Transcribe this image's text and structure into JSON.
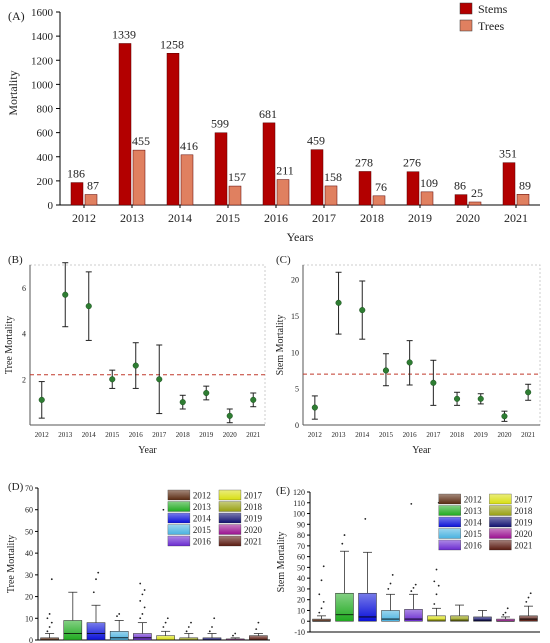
{
  "chart_data": [
    {
      "panel": "(A)",
      "type": "bar",
      "xlabel": "Years",
      "ylabel": "Mortality",
      "ylim": [
        0,
        1600
      ],
      "yticks": [
        0,
        200,
        400,
        600,
        800,
        1000,
        1200,
        1400,
        1600
      ],
      "categories": [
        "2012",
        "2013",
        "2014",
        "2015",
        "2016",
        "2017",
        "2018",
        "2019",
        "2020",
        "2021"
      ],
      "legend_position": "top-right",
      "series": [
        {
          "name": "Stems",
          "color": "#b30000",
          "values": [
            186,
            1339,
            1258,
            599,
            681,
            459,
            278,
            276,
            86,
            351
          ]
        },
        {
          "name": "Trees",
          "color": "#e08060",
          "values": [
            87,
            455,
            416,
            157,
            211,
            158,
            76,
            109,
            25,
            89
          ]
        }
      ]
    },
    {
      "panel": "(B)",
      "type": "scatter",
      "xlabel": "Year",
      "ylabel": "Tree Mortality",
      "ylim": [
        0,
        7
      ],
      "yticks": [
        2,
        4,
        6
      ],
      "categories": [
        "2012",
        "2013",
        "2014",
        "2015",
        "2016",
        "2017",
        "2018",
        "2019",
        "2020",
        "2021"
      ],
      "mean": [
        1.1,
        5.7,
        5.2,
        2.0,
        2.6,
        2.0,
        1.0,
        1.4,
        0.4,
        1.1
      ],
      "lower": [
        0.3,
        4.3,
        3.7,
        1.6,
        1.6,
        0.5,
        0.7,
        1.1,
        0.1,
        0.8
      ],
      "upper": [
        1.9,
        7.1,
        6.7,
        2.4,
        3.6,
        3.5,
        1.3,
        1.7,
        0.7,
        1.4
      ],
      "reference_line": 2.2
    },
    {
      "panel": "(C)",
      "type": "scatter",
      "xlabel": "Year",
      "ylabel": "Stem Mortality",
      "ylim": [
        0,
        22
      ],
      "yticks": [
        0,
        5,
        10,
        15,
        20
      ],
      "categories": [
        "2012",
        "2013",
        "2014",
        "2015",
        "2016",
        "2017",
        "2018",
        "2019",
        "2020",
        "2021"
      ],
      "mean": [
        2.4,
        16.8,
        15.8,
        7.5,
        8.6,
        5.8,
        3.6,
        3.6,
        1.2,
        4.5
      ],
      "lower": [
        0.8,
        12.5,
        11.8,
        5.4,
        5.5,
        2.7,
        2.7,
        2.9,
        0.5,
        3.4
      ],
      "upper": [
        4.0,
        21.0,
        19.8,
        9.8,
        11.6,
        8.9,
        4.5,
        4.3,
        1.9,
        5.6
      ],
      "reference_line": 7.0
    },
    {
      "panel": "(D)",
      "type": "box",
      "ylabel": "Tree Mortality",
      "ylim": [
        0,
        70
      ],
      "yticks": [
        0,
        10,
        20,
        30,
        40,
        50,
        60,
        70
      ],
      "categories": [
        "2012",
        "2013",
        "2014",
        "2015",
        "2016",
        "2017",
        "2018",
        "2019",
        "2020",
        "2021"
      ],
      "legend_position": "top-right",
      "boxes": [
        {
          "q1": 0,
          "median": 0,
          "q3": 1,
          "whisker_high": 3,
          "outliers": [
            4,
            6,
            8,
            10,
            12,
            28
          ]
        },
        {
          "q1": 0,
          "median": 3,
          "q3": 9,
          "whisker_high": 22,
          "outliers": []
        },
        {
          "q1": 0,
          "median": 3,
          "q3": 8,
          "whisker_high": 16,
          "outliers": [
            22,
            28,
            31
          ]
        },
        {
          "q1": 0,
          "median": 1,
          "q3": 4,
          "whisker_high": 9,
          "outliers": [
            11,
            12
          ]
        },
        {
          "q1": 0,
          "median": 1,
          "q3": 3,
          "whisker_high": 8,
          "outliers": [
            10,
            12,
            15,
            18,
            21,
            23,
            26
          ]
        },
        {
          "q1": 0,
          "median": 0,
          "q3": 2,
          "whisker_high": 4,
          "outliers": [
            6,
            8,
            10,
            60
          ]
        },
        {
          "q1": 0,
          "median": 0,
          "q3": 1,
          "whisker_high": 3,
          "outliers": [
            4,
            6,
            8
          ]
        },
        {
          "q1": 0,
          "median": 0,
          "q3": 1,
          "whisker_high": 3,
          "outliers": [
            4,
            6,
            10
          ]
        },
        {
          "q1": 0,
          "median": 0,
          "q3": 0.5,
          "whisker_high": 1,
          "outliers": [
            2,
            3
          ]
        },
        {
          "q1": 0,
          "median": 0,
          "q3": 2,
          "whisker_high": 3,
          "outliers": [
            5,
            8
          ]
        }
      ]
    },
    {
      "panel": "(E)",
      "type": "box",
      "ylabel": "Stem Mortality",
      "ylim": [
        -10,
        120
      ],
      "yticks": [
        -10,
        0,
        10,
        20,
        30,
        40,
        50,
        60,
        70,
        80,
        90,
        100,
        110,
        120
      ],
      "categories": [
        "2012",
        "2013",
        "2014",
        "2015",
        "2016",
        "2017",
        "2018",
        "2019",
        "2020",
        "2021"
      ],
      "legend_position": "top-right",
      "boxes": [
        {
          "q1": 0,
          "median": 0,
          "q3": 2,
          "whisker_high": 5,
          "outliers": [
            8,
            12,
            18,
            25,
            38,
            51
          ]
        },
        {
          "q1": 0,
          "median": 6,
          "q3": 26,
          "whisker_high": 65,
          "outliers": [
            72,
            80
          ]
        },
        {
          "q1": 0,
          "median": 4,
          "q3": 26,
          "whisker_high": 64,
          "outliers": [
            95
          ]
        },
        {
          "q1": 0,
          "median": 2,
          "q3": 10,
          "whisker_high": 25,
          "outliers": [
            30,
            35,
            43
          ]
        },
        {
          "q1": 0,
          "median": 2,
          "q3": 11,
          "whisker_high": 25,
          "outliers": [
            28,
            31,
            34,
            109
          ]
        },
        {
          "q1": 0,
          "median": 1,
          "q3": 5,
          "whisker_high": 12,
          "outliers": [
            16,
            25,
            33,
            37,
            48,
            110
          ]
        },
        {
          "q1": 0,
          "median": 1,
          "q3": 5,
          "whisker_high": 15,
          "outliers": []
        },
        {
          "q1": 0,
          "median": 1,
          "q3": 4,
          "whisker_high": 10,
          "outliers": []
        },
        {
          "q1": 0,
          "median": 0,
          "q3": 2,
          "whisker_high": 4,
          "outliers": [
            6,
            8,
            12
          ]
        },
        {
          "q1": 0,
          "median": 2,
          "q3": 5,
          "whisker_high": 14,
          "outliers": [
            18,
            22,
            26
          ]
        }
      ]
    }
  ],
  "box_legend": [
    {
      "label": "2012",
      "color": "#5a2a10"
    },
    {
      "label": "2013",
      "color": "#1faa1f"
    },
    {
      "label": "2014",
      "color": "#0a10d8"
    },
    {
      "label": "2015",
      "color": "#4ab2e0"
    },
    {
      "label": "2016",
      "color": "#6a2bd0"
    },
    {
      "label": "2017",
      "color": "#d8df10"
    },
    {
      "label": "2018",
      "color": "#98a010"
    },
    {
      "label": "2019",
      "color": "#101070"
    },
    {
      "label": "2020",
      "color": "#9a1090"
    },
    {
      "label": "2021",
      "color": "#5a1a10"
    }
  ]
}
